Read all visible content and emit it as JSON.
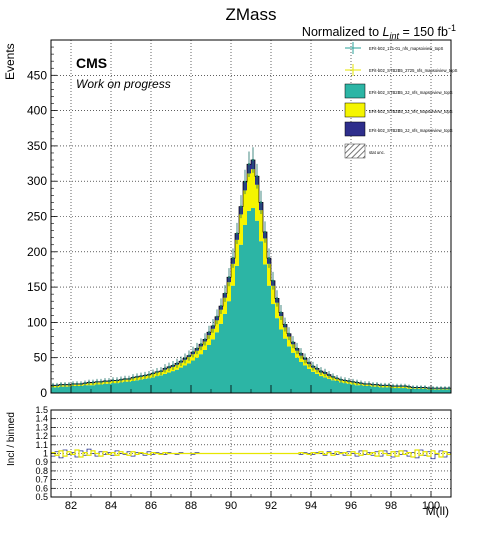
{
  "title": "ZMass",
  "lumi_label": {
    "prefix": "Normalized to ",
    "L": "L",
    "sub": "int",
    "mid": " = 150 fb",
    "sup": "-1"
  },
  "cms_label": "CMS",
  "cms_sub_label": "Work on progress",
  "legend": [
    {
      "label": "EFit-b02_171-01_nfs_mapsoiview_topS",
      "style": "errorbar",
      "color": "#2aa198"
    },
    {
      "label": "EFit-b02_STB2B5_2725_nfs_mapsoiview_topS",
      "style": "errorbar",
      "color": "#e6e600"
    },
    {
      "label": "EFit-b02_STB2B5_2J_nfs_mapsoiview_topS",
      "style": "fill",
      "color": "#2cb5a5"
    },
    {
      "label": "EFit-b02_STB2B5_2J_nfs_mapsoiview_topS",
      "style": "fill",
      "color": "#f5f500"
    },
    {
      "label": "EFit-b02_STB2B5_2J_nfs_mapsoiview_topS",
      "style": "fill",
      "color": "#2e2e8c"
    },
    {
      "label": "stat unc.",
      "style": "hatch",
      "color": "#555555"
    }
  ],
  "chart_data": [
    {
      "type": "area",
      "title": "ZMass",
      "ylabel": "Events",
      "xlabel": "",
      "xlim": [
        81,
        101
      ],
      "ylim": [
        0,
        500
      ],
      "yticks": [
        0,
        50,
        100,
        150,
        200,
        250,
        300,
        350,
        400,
        450
      ],
      "grid": true,
      "legend_placement": "top-right",
      "x": [
        81.1,
        81.3,
        81.5,
        81.7,
        81.9,
        82.1,
        82.3,
        82.5,
        82.7,
        82.9,
        83.1,
        83.3,
        83.5,
        83.7,
        83.9,
        84.1,
        84.3,
        84.5,
        84.7,
        84.9,
        85.1,
        85.3,
        85.5,
        85.7,
        85.9,
        86.1,
        86.3,
        86.5,
        86.7,
        86.9,
        87.1,
        87.3,
        87.5,
        87.7,
        87.9,
        88.1,
        88.3,
        88.5,
        88.7,
        88.9,
        89.1,
        89.3,
        89.5,
        89.7,
        89.9,
        90.1,
        90.3,
        90.5,
        90.7,
        90.9,
        91.1,
        91.3,
        91.5,
        91.7,
        91.9,
        92.1,
        92.3,
        92.5,
        92.7,
        92.9,
        93.1,
        93.3,
        93.5,
        93.7,
        93.9,
        94.1,
        94.3,
        94.5,
        94.7,
        94.9,
        95.1,
        95.3,
        95.5,
        95.7,
        95.9,
        96.1,
        96.3,
        96.5,
        96.7,
        96.9,
        97.1,
        97.3,
        97.5,
        97.7,
        97.9,
        98.1,
        98.3,
        98.5,
        98.7,
        98.9,
        99.1,
        99.3,
        99.5,
        99.7,
        99.9,
        100.1,
        100.3,
        100.5,
        100.7,
        100.9
      ],
      "series": [
        {
          "values": [
            8,
            8,
            9,
            9,
            9,
            10,
            10,
            10,
            11,
            11,
            11,
            12,
            12,
            13,
            13,
            14,
            14,
            15,
            16,
            16,
            17,
            18,
            19,
            20,
            21,
            22,
            24,
            25,
            27,
            29,
            31,
            33,
            36,
            39,
            42,
            46,
            50,
            55,
            61,
            68,
            76,
            86,
            98,
            112,
            130,
            152,
            180,
            210,
            238,
            258,
            262,
            244,
            215,
            182,
            152,
            126,
            106,
            90,
            77,
            66,
            57,
            50,
            44,
            39,
            34,
            30,
            27,
            24,
            22,
            20,
            18,
            17,
            15,
            14,
            13,
            12,
            11,
            11,
            10,
            10,
            9,
            9,
            8,
            8,
            8,
            7,
            7,
            7,
            7,
            6,
            6,
            6,
            6,
            6,
            5,
            5,
            5,
            5,
            5,
            5
          ]
        },
        {
          "values": [
            2,
            2,
            2,
            2,
            2,
            2,
            2,
            2,
            2,
            3,
            3,
            3,
            3,
            3,
            3,
            3,
            3,
            3,
            3,
            3,
            4,
            4,
            4,
            4,
            4,
            5,
            5,
            5,
            6,
            6,
            6,
            7,
            7,
            8,
            9,
            9,
            10,
            11,
            12,
            14,
            15,
            17,
            20,
            23,
            27,
            31,
            37,
            43,
            49,
            53,
            55,
            51,
            44,
            37,
            31,
            26,
            22,
            19,
            16,
            14,
            12,
            10,
            9,
            8,
            7,
            6,
            6,
            5,
            5,
            4,
            4,
            3,
            3,
            3,
            3,
            3,
            3,
            2,
            2,
            2,
            2,
            2,
            2,
            2,
            2,
            2,
            2,
            2,
            2,
            2,
            1,
            1,
            1,
            1,
            1,
            1,
            1,
            1,
            1,
            1
          ]
        },
        {
          "values": [
            1,
            1,
            1,
            1,
            1,
            1,
            1,
            1,
            1,
            1,
            1,
            1,
            1,
            1,
            1,
            1,
            1,
            1,
            1,
            1,
            1,
            1,
            1,
            1,
            1,
            1,
            1,
            1,
            2,
            2,
            2,
            2,
            2,
            2,
            2,
            3,
            3,
            3,
            3,
            4,
            4,
            5,
            5,
            6,
            7,
            8,
            9,
            11,
            12,
            13,
            13,
            12,
            11,
            9,
            8,
            7,
            6,
            5,
            4,
            4,
            3,
            3,
            3,
            2,
            2,
            2,
            2,
            2,
            2,
            2,
            1,
            1,
            1,
            1,
            1,
            1,
            1,
            1,
            1,
            1,
            1,
            1,
            1,
            1,
            1,
            1,
            1,
            1,
            1,
            1,
            1,
            1,
            1,
            1,
            1,
            1,
            1,
            1,
            1,
            1
          ]
        }
      ]
    },
    {
      "type": "line",
      "ylabel": "Incl / binned",
      "xlabel": "M(ll)",
      "xlim": [
        81,
        101
      ],
      "ylim": [
        0.5,
        1.5
      ],
      "xticks": [
        82,
        84,
        86,
        88,
        90,
        92,
        94,
        96,
        98,
        100
      ],
      "yticks": [
        0.5,
        0.6,
        0.7,
        0.8,
        0.9,
        1,
        1.1,
        1.2,
        1.3,
        1.4,
        1.5
      ],
      "grid": true,
      "x": [
        81.1,
        81.3,
        81.5,
        81.7,
        81.9,
        82.1,
        82.3,
        82.5,
        82.7,
        82.9,
        83.1,
        83.3,
        83.5,
        83.7,
        83.9,
        84.1,
        84.3,
        84.5,
        84.7,
        84.9,
        85.1,
        85.3,
        85.5,
        85.7,
        85.9,
        86.1,
        86.3,
        86.5,
        86.7,
        86.9,
        87.1,
        87.3,
        87.5,
        87.7,
        87.9,
        88.1,
        88.3,
        88.5,
        88.7,
        88.9,
        89.1,
        89.3,
        89.5,
        89.7,
        89.9,
        90.1,
        90.3,
        90.5,
        90.7,
        90.9,
        91.1,
        91.3,
        91.5,
        91.7,
        91.9,
        92.1,
        92.3,
        92.5,
        92.7,
        92.9,
        93.1,
        93.3,
        93.5,
        93.7,
        93.9,
        94.1,
        94.3,
        94.5,
        94.7,
        94.9,
        95.1,
        95.3,
        95.5,
        95.7,
        95.9,
        96.1,
        96.3,
        96.5,
        96.7,
        96.9,
        97.1,
        97.3,
        97.5,
        97.7,
        97.9,
        98.1,
        98.3,
        98.5,
        98.7,
        98.9,
        99.1,
        99.3,
        99.5,
        99.7,
        99.9,
        100.1,
        100.3,
        100.5,
        100.7,
        100.9
      ],
      "series": [
        {
          "values": [
            0.97,
            1.02,
            0.95,
            1.04,
            0.99,
            1.01,
            0.96,
            1.03,
            0.98,
            1.05,
            1.0,
            0.97,
            1.02,
            0.99,
            1.01,
            0.98,
            1.03,
            1.0,
            0.99,
            1.02,
            0.97,
            1.01,
            1.0,
            0.98,
            1.02,
            0.99,
            1.01,
            1.0,
            0.99,
            1.01,
            1.0,
            0.99,
            1.01,
            1.0,
            1.0,
            0.99,
            1.01,
            1.0,
            1.0,
            1.0,
            1.0,
            1.0,
            1.0,
            1.0,
            1.0,
            1.0,
            1.0,
            1.0,
            1.0,
            1.0,
            1.0,
            1.0,
            1.0,
            1.0,
            1.0,
            1.0,
            1.0,
            1.0,
            1.0,
            1.0,
            1.0,
            1.0,
            0.99,
            1.01,
            1.0,
            0.99,
            1.01,
            1.0,
            0.98,
            1.02,
            1.0,
            0.99,
            1.01,
            0.98,
            1.02,
            1.0,
            0.97,
            1.03,
            0.99,
            1.01,
            0.98,
            1.02,
            0.97,
            1.03,
            1.0,
            0.96,
            1.02,
            0.99,
            1.03,
            0.97,
            1.01,
            0.95,
            1.04,
            0.98,
            1.02,
            0.94,
            0.99,
            1.03,
            0.96,
            1.01
          ]
        },
        {
          "values": [
            1.01,
            0.98,
            1.03,
            0.97,
            1.02,
            0.99,
            1.04,
            0.96,
            1.01,
            0.98,
            1.03,
            1.0,
            0.97,
            1.02,
            0.99,
            1.01,
            0.98,
            1.02,
            1.0,
            0.98,
            1.02,
            0.99,
            1.01,
            1.0,
            0.99,
            1.01,
            1.0,
            0.99,
            1.01,
            1.0,
            1.0,
            1.0,
            1.0,
            1.0,
            1.0,
            1.0,
            1.0,
            1.0,
            1.0,
            1.0,
            1.0,
            1.0,
            1.0,
            1.0,
            1.0,
            1.0,
            1.0,
            1.0,
            1.0,
            1.0,
            1.0,
            1.0,
            1.0,
            1.0,
            1.0,
            1.0,
            1.0,
            1.0,
            1.0,
            1.0,
            1.0,
            1.0,
            1.01,
            1.0,
            0.99,
            1.01,
            1.0,
            1.02,
            0.99,
            1.01,
            0.98,
            1.02,
            1.0,
            1.01,
            0.98,
            1.02,
            1.0,
            0.98,
            1.03,
            0.99,
            1.01,
            0.97,
            1.03,
            1.0,
            0.98,
            1.02,
            0.97,
            1.03,
            0.99,
            1.01,
            0.96,
            1.04,
            0.98,
            1.02,
            0.97,
            1.03,
            1.0,
            0.96,
            1.02,
            0.99
          ]
        }
      ]
    }
  ],
  "colors": {
    "dy": "#2cb5a5",
    "top": "#f5f500",
    "other": "#2e2e8c",
    "grid": "#000000",
    "ratio_a": "#1f2a8c",
    "ratio_b": "#e6e600"
  }
}
